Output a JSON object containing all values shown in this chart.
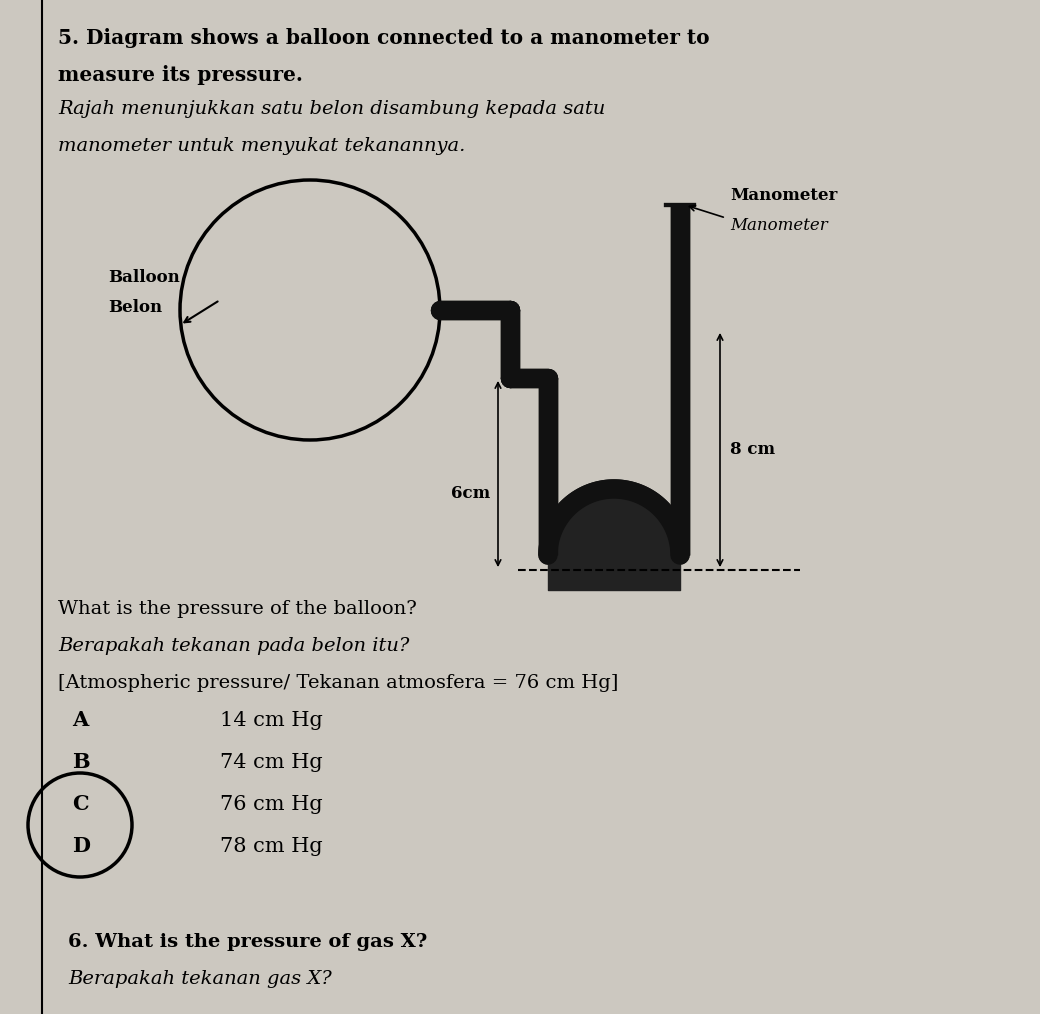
{
  "bg_color": "#ccc8c0",
  "title_line1": "5. Diagram shows a balloon connected to a manometer to",
  "title_line2": "measure its pressure.",
  "title_line3": "Rajah menunjukkan satu belon disambung kepada satu",
  "title_line4": "manometer untuk menyukat tekanannya.",
  "label_balloon_en": "Balloon",
  "label_balloon_ms": "Belon",
  "label_manometer_en": "Manometer",
  "label_manometer_ms": "Manometer",
  "label_6cm": "6cm",
  "label_8cm": "8 cm",
  "question_line1": "What is the pressure of the balloon?",
  "question_line2": "Berapakah tekanan pada belon itu?",
  "question_line3": "[Atmospheric pressure/ Tekanan atmosfera = 76 cm Hg]",
  "q6_line1": "6. What is the pressure of gas X?",
  "q6_line2": "Berapakah tekanan gas X?",
  "tube_color": "#111111",
  "tube_lw": 14,
  "answer_circle_cd": true
}
